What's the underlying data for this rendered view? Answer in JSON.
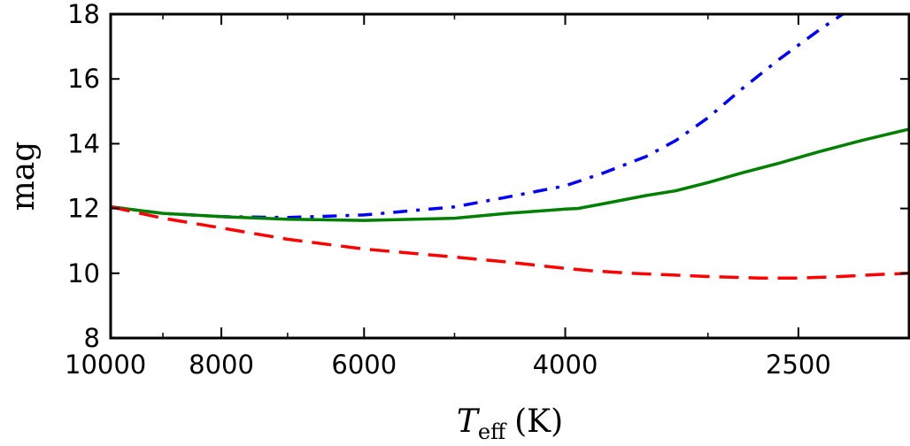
{
  "chart_data": {
    "type": "line",
    "title": "",
    "xlabel_main": "T",
    "xlabel_sub": "eff",
    "xlabel_unit": "(K)",
    "ylabel": "mag",
    "x_scale": "log",
    "x_reversed": true,
    "xlim": [
      10000,
      2000
    ],
    "ylim": [
      8,
      18
    ],
    "x_ticks": [
      {
        "value": 10000,
        "label": "10000"
      },
      {
        "value": 8000,
        "label": "8000"
      },
      {
        "value": 6000,
        "label": "6000"
      },
      {
        "value": 4000,
        "label": "4000"
      },
      {
        "value": 2500,
        "label": "2500"
      }
    ],
    "x_minor_ticks": [
      9000,
      7000,
      5000,
      3000
    ],
    "y_ticks": [
      {
        "value": 8,
        "label": "8"
      },
      {
        "value": 10,
        "label": "10"
      },
      {
        "value": 12,
        "label": "12"
      },
      {
        "value": 14,
        "label": "14"
      },
      {
        "value": 16,
        "label": "16"
      },
      {
        "value": 18,
        "label": "18"
      }
    ],
    "series": [
      {
        "name": "dash-dot",
        "color": "#0000ff",
        "style": "dashdot",
        "x": [
          10000,
          9000,
          8000,
          7000,
          6000,
          5000,
          4500,
          4000,
          3700,
          3400,
          3200,
          3000,
          2800,
          2600,
          2400,
          2200
        ],
        "y": [
          12.05,
          11.85,
          11.75,
          11.72,
          11.8,
          12.05,
          12.35,
          12.7,
          13.1,
          13.6,
          14.1,
          14.8,
          15.7,
          16.6,
          17.5,
          18.4
        ]
      },
      {
        "name": "solid",
        "color": "#008000",
        "style": "solid",
        "x": [
          10000,
          9000,
          8000,
          7000,
          6000,
          5000,
          4500,
          4000,
          3900,
          3700,
          3400,
          3200,
          3000,
          2800,
          2600,
          2400,
          2200,
          2000
        ],
        "y": [
          12.05,
          11.85,
          11.75,
          11.67,
          11.63,
          11.7,
          11.85,
          11.98,
          12.0,
          12.15,
          12.4,
          12.55,
          12.8,
          13.1,
          13.4,
          13.75,
          14.1,
          14.45
        ]
      },
      {
        "name": "dashed",
        "color": "#ff0000",
        "style": "dashed",
        "x": [
          10000,
          9000,
          8000,
          7000,
          6000,
          5000,
          4500,
          4000,
          3800,
          3500,
          3000,
          2700,
          2500,
          2300,
          2100,
          2000
        ],
        "y": [
          12.05,
          11.7,
          11.4,
          11.05,
          10.75,
          10.5,
          10.35,
          10.15,
          10.08,
          10.0,
          9.9,
          9.85,
          9.85,
          9.9,
          9.97,
          10.0
        ]
      }
    ]
  }
}
